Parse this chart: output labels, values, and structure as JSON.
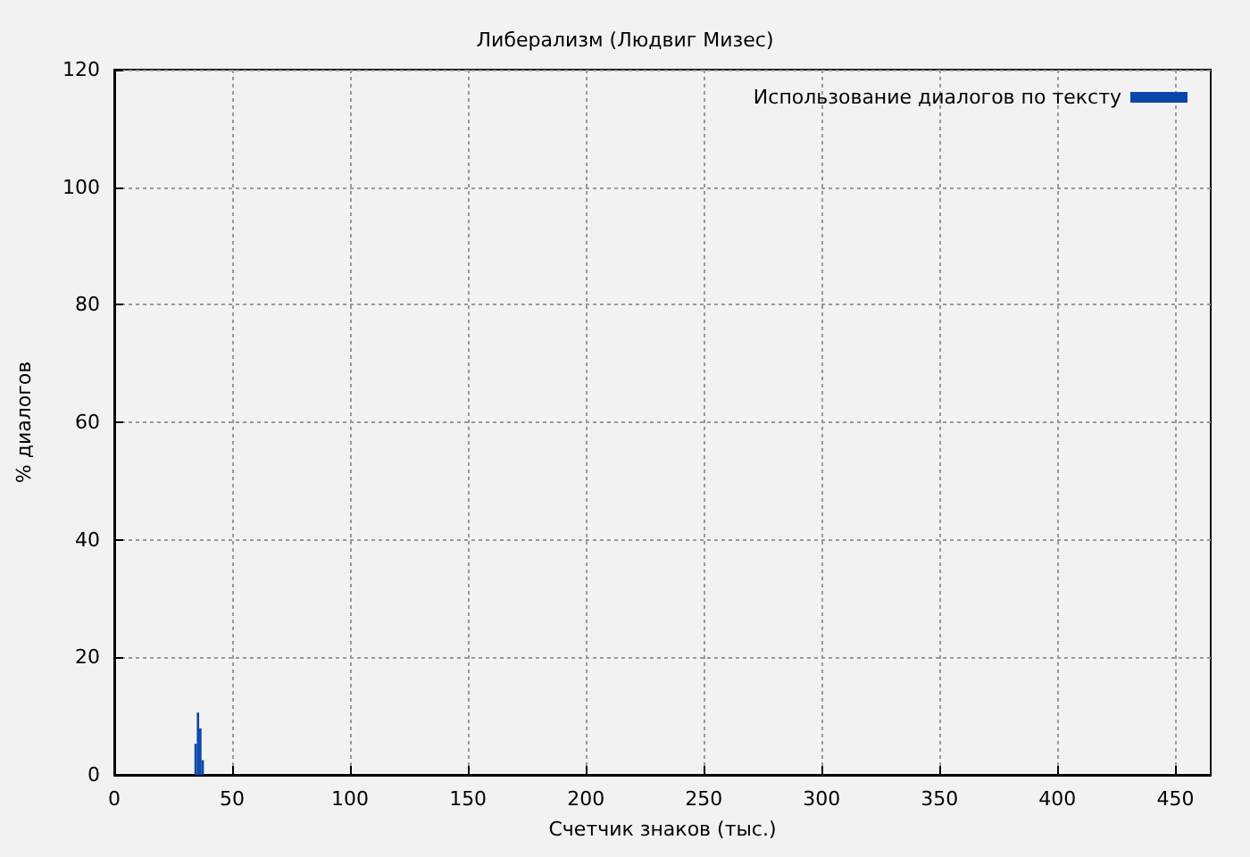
{
  "chart_data": {
    "type": "histogram",
    "title": "Либерализм (Людвиг Мизес)",
    "xlabel": "Счетчик знаков (тыс.)",
    "ylabel": "% диалогов",
    "bins": [
      34,
      35,
      36,
      37,
      38
    ],
    "series": [
      {
        "name": "Использование диалогов по тексту",
        "color": "#0a46a8",
        "values": [
          5.3,
          10.6,
          7.9,
          2.5
        ]
      }
    ],
    "xlim": [
      0,
      465
    ],
    "xticks": [
      0,
      50,
      100,
      150,
      200,
      250,
      300,
      350,
      400,
      450
    ],
    "ylim": [
      0,
      120
    ],
    "yticks": [
      0,
      20,
      40,
      60,
      80,
      100,
      120
    ],
    "grid": true,
    "legend": "top right"
  }
}
